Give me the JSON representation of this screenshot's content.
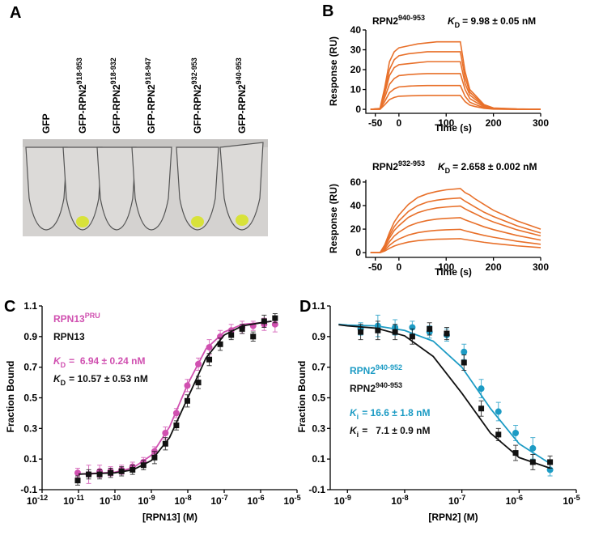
{
  "panel_labels": [
    "A",
    "B",
    "C",
    "D"
  ],
  "tube_image": {
    "labels": [
      {
        "text": "GFP"
      },
      {
        "text": "GFP-RPN2",
        "superscript": "918-953"
      },
      {
        "text": "GFP-RPN2",
        "superscript": "918-932"
      },
      {
        "text": "GFP-RPN2",
        "superscript": "918-947"
      },
      {
        "text": "GFP-RPN2",
        "superscript": "932-953"
      },
      {
        "text": "GFP-RPN2",
        "superscript": "940-953"
      }
    ]
  },
  "chart_data": [
    {
      "type": "line",
      "title": "RPN2",
      "title_superscript": "940-953",
      "annotations": [
        {
          "symbol": "K",
          "subscript": "D",
          "text": "= 9.98 ± 0.05 nM",
          "color": "#000000"
        }
      ],
      "xlabel": "Time (s)",
      "ylabel": "Response (RU)",
      "xlim": [
        -70,
        300
      ],
      "xticks": [
        -50,
        0,
        100,
        200,
        300
      ],
      "ylim": [
        -2,
        40
      ],
      "yticks": [
        0,
        10,
        20,
        30,
        40
      ],
      "x": [
        -60,
        -40,
        -30,
        -20,
        -10,
        0,
        20,
        40,
        60,
        80,
        100,
        130,
        140,
        150,
        160,
        180,
        200,
        250,
        300
      ],
      "series": [
        {
          "color": "#e8702a",
          "values": [
            0,
            0.5,
            11,
            24,
            29,
            31,
            32,
            33,
            33.5,
            34,
            34,
            34,
            19,
            10,
            7.5,
            2.4,
            0.7,
            0.2,
            0
          ]
        },
        {
          "color": "#e8702a",
          "values": [
            0,
            0.4,
            9.5,
            20,
            25,
            27,
            28,
            28.5,
            29,
            29,
            29,
            29,
            16,
            8.7,
            6.4,
            2,
            0.6,
            0.1,
            0
          ]
        },
        {
          "color": "#e8702a",
          "values": [
            0,
            0.3,
            8,
            17,
            21,
            22.5,
            23,
            23.5,
            24,
            24,
            24,
            24,
            13,
            7.2,
            5.3,
            1.7,
            0.5,
            0.1,
            0
          ]
        },
        {
          "color": "#e8702a",
          "values": [
            0,
            0.2,
            6,
            12.6,
            15.5,
            17,
            17.5,
            17.8,
            18,
            18,
            18,
            18,
            10,
            5.4,
            4,
            1.3,
            0.4,
            0,
            0
          ]
        },
        {
          "color": "#e8702a",
          "values": [
            0,
            0.1,
            4,
            8.4,
            10.3,
            11.3,
            11.7,
            11.9,
            12,
            12,
            12,
            12,
            6.6,
            3.6,
            2.6,
            0.8,
            0.2,
            0,
            0
          ]
        },
        {
          "color": "#e8702a",
          "values": [
            0,
            0,
            2.3,
            4.9,
            6,
            6.6,
            6.8,
            6.9,
            7,
            7,
            7,
            7,
            3.9,
            2.1,
            1.5,
            0.5,
            0.1,
            0,
            0
          ]
        }
      ]
    },
    {
      "type": "line",
      "title": "RPN2",
      "title_superscript": "932-953",
      "annotations": [
        {
          "symbol": "K",
          "subscript": "D",
          "text": "= 2.658 ± 0.002 nM",
          "color": "#000000"
        }
      ],
      "xlabel": "Time (s)",
      "ylabel": "Response (RU)",
      "xlim": [
        -70,
        300
      ],
      "xticks": [
        -50,
        0,
        100,
        200,
        300
      ],
      "ylim": [
        -4,
        62
      ],
      "yticks": [
        0,
        20,
        40,
        60
      ],
      "x": [
        -60,
        -40,
        -30,
        -20,
        -10,
        0,
        20,
        40,
        60,
        80,
        100,
        130,
        140,
        150,
        160,
        180,
        200,
        250,
        300
      ],
      "series": [
        {
          "color": "#e8702a",
          "values": [
            0,
            0,
            6.6,
            17,
            26,
            32,
            41,
            47,
            50,
            52,
            53.4,
            54.5,
            51,
            49,
            46,
            41,
            36,
            27,
            20
          ]
        },
        {
          "color": "#e8702a",
          "values": [
            0,
            0,
            5.6,
            14.6,
            22,
            27,
            35,
            40,
            43,
            44.6,
            45.6,
            46.5,
            43.7,
            41.4,
            39,
            34.4,
            30.7,
            22.8,
            16.7
          ]
        },
        {
          "color": "#e8702a",
          "values": [
            0,
            0,
            4.8,
            12.4,
            18.8,
            23,
            30,
            34,
            36.4,
            38,
            38.8,
            39.6,
            37.2,
            35.2,
            33.3,
            29.3,
            26.1,
            19.4,
            14.3
          ]
        },
        {
          "color": "#e8702a",
          "values": [
            0,
            0,
            3.6,
            9.3,
            14.1,
            17.4,
            22.5,
            25.5,
            27.3,
            28.5,
            29.1,
            29.7,
            27.9,
            26.4,
            25,
            22,
            19.6,
            14.6,
            10.7
          ]
        },
        {
          "color": "#e8702a",
          "values": [
            0,
            0,
            2.4,
            6.2,
            9.4,
            11.6,
            15,
            17,
            18.2,
            19,
            19.4,
            19.8,
            18.6,
            17.6,
            16.6,
            14.7,
            13.1,
            9.7,
            7.1
          ]
        },
        {
          "color": "#e8702a",
          "values": [
            0,
            0,
            1.4,
            3.7,
            5.6,
            7,
            9,
            10.2,
            10.9,
            11.4,
            11.6,
            11.9,
            11.2,
            10.6,
            10,
            8.8,
            7.8,
            5.8,
            4.3
          ]
        }
      ]
    },
    {
      "type": "scatter",
      "log_x": true,
      "xlabel": "[RPN13] (M)",
      "ylabel": "Fraction Bound",
      "xlim": [
        1e-12,
        1e-05
      ],
      "xticks": [
        {
          "value": 1e-12,
          "label": "10",
          "exponent": "-12"
        },
        {
          "value": 1e-11,
          "label": "10",
          "exponent": "-11"
        },
        {
          "value": 1e-10,
          "label": "10",
          "exponent": "-10"
        },
        {
          "value": 1e-09,
          "label": "10",
          "exponent": "-9"
        },
        {
          "value": 1e-08,
          "label": "10",
          "exponent": "-8"
        },
        {
          "value": 1e-07,
          "label": "10",
          "exponent": "-7"
        },
        {
          "value": 1e-06,
          "label": "10",
          "exponent": "-6"
        },
        {
          "value": 1e-05,
          "label": "10",
          "exponent": "-5"
        }
      ],
      "ylim": [
        -0.1,
        1.1
      ],
      "yticks": [
        -0.1,
        0.1,
        0.3,
        0.5,
        0.7,
        0.9,
        1.1
      ],
      "x": [
        9.5e-12,
        1.9e-11,
        3.8e-11,
        7.6e-11,
        1.52e-10,
        3.04e-10,
        6.08e-10,
        1.22e-09,
        2.43e-09,
        4.86e-09,
        9.73e-09,
        1.95e-08,
        3.89e-08,
        7.78e-08,
        1.56e-07,
        3.11e-07,
        6.23e-07,
        1.25e-06,
        2.49e-06
      ],
      "series": [
        {
          "name": "RPN13",
          "name_superscript": "PRU",
          "color": "#d050b0",
          "marker": "circle",
          "values": [
            0.01,
            0.0,
            0.02,
            0.02,
            0.03,
            0.05,
            0.08,
            0.15,
            0.27,
            0.4,
            0.58,
            0.72,
            0.83,
            0.9,
            0.94,
            0.96,
            0.97,
            0.98,
            0.98
          ],
          "errors": [
            0.03,
            0.06,
            0.04,
            0.03,
            0.03,
            0.03,
            0.03,
            0.03,
            0.04,
            0.03,
            0.04,
            0.04,
            0.05,
            0.04,
            0.04,
            0.04,
            0.03,
            0.04,
            0.05
          ],
          "fit": {
            "x": [
              1e-11,
              1e-10,
              3.16e-10,
              1e-09,
              3.16e-09,
              1e-08,
              3.16e-08,
              1e-07,
              3.16e-07,
              1e-06,
              2e-06
            ],
            "values": [
              0.0014,
              0.014,
              0.043,
              0.125,
              0.31,
              0.59,
              0.82,
              0.93,
              0.98,
              0.99,
              1.0
            ]
          }
        },
        {
          "name": "RPN13",
          "color": "#111111",
          "marker": "square",
          "values": [
            -0.04,
            0.0,
            0.0,
            0.01,
            0.02,
            0.03,
            0.06,
            0.11,
            0.2,
            0.32,
            0.48,
            0.6,
            0.75,
            0.85,
            0.91,
            0.95,
            0.9,
            1.0,
            1.02
          ],
          "errors": [
            0.03,
            0.03,
            0.03,
            0.03,
            0.03,
            0.03,
            0.03,
            0.04,
            0.04,
            0.03,
            0.04,
            0.04,
            0.04,
            0.04,
            0.03,
            0.03,
            0.03,
            0.04,
            0.03
          ],
          "fit": {
            "x": [
              1e-11,
              1e-10,
              3.16e-10,
              1e-09,
              3.16e-09,
              1e-08,
              3.16e-08,
              1e-07,
              3.16e-07,
              1e-06,
              2e-06
            ],
            "values": [
              0.001,
              0.01,
              0.03,
              0.09,
              0.24,
              0.5,
              0.76,
              0.91,
              0.97,
              0.99,
              1.0
            ]
          }
        }
      ],
      "annotations": [
        {
          "symbol": "K",
          "subscript": "D",
          "text": "=  6.94 ± 0.24 nM",
          "color": "#d050b0"
        },
        {
          "symbol": "K",
          "subscript": "D",
          "text": "= 10.57 ± 0.53 nM",
          "color": "#111111"
        }
      ]
    },
    {
      "type": "scatter",
      "log_x": true,
      "xlabel": "[RPN2] (M)",
      "ylabel": "Fraction Bound",
      "xlim": [
        5e-10,
        1e-05
      ],
      "xticks": [
        {
          "value": 1e-09,
          "label": "10",
          "exponent": "-9"
        },
        {
          "value": 1e-08,
          "label": "10",
          "exponent": "-8"
        },
        {
          "value": 1e-07,
          "label": "10",
          "exponent": "-7"
        },
        {
          "value": 1e-06,
          "label": "10",
          "exponent": "-6"
        },
        {
          "value": 1e-05,
          "label": "10",
          "exponent": "-5"
        }
      ],
      "ylim": [
        -0.1,
        1.1
      ],
      "yticks": [
        -0.1,
        0.1,
        0.3,
        0.5,
        0.7,
        0.9,
        1.1
      ],
      "x": [
        1.7e-09,
        3.4e-09,
        6.8e-09,
        1.36e-08,
        2.72e-08,
        5.44e-08,
        1.09e-07,
        2.18e-07,
        4.35e-07,
        8.7e-07,
        1.74e-06,
        3.48e-06
      ],
      "series": [
        {
          "name": "RPN2",
          "name_superscript": "940-952",
          "color": "#1c9bc4",
          "marker": "circle",
          "values": [
            0.95,
            0.97,
            0.96,
            0.96,
            0.93,
            0.91,
            0.8,
            0.56,
            0.41,
            0.27,
            0.17,
            0.03
          ],
          "errors": [
            0.04,
            0.07,
            0.05,
            0.04,
            0.04,
            0.04,
            0.05,
            0.06,
            0.06,
            0.05,
            0.07,
            0.04
          ],
          "fit": {
            "x": [
              7e-10,
              1e-09,
              3.16e-09,
              1e-08,
              3.16e-08,
              1e-07,
              3.16e-07,
              1e-06,
              3.5e-06
            ],
            "values": [
              0.98,
              0.975,
              0.97,
              0.94,
              0.87,
              0.7,
              0.43,
              0.2,
              0.07
            ]
          }
        },
        {
          "name": "RPN2",
          "name_superscript": "940-953",
          "color": "#111111",
          "marker": "square",
          "values": [
            0.93,
            0.94,
            0.93,
            0.9,
            0.95,
            0.92,
            0.73,
            0.43,
            0.26,
            0.14,
            0.08,
            0.08
          ],
          "errors": [
            0.05,
            0.06,
            0.05,
            0.05,
            0.04,
            0.04,
            0.05,
            0.05,
            0.04,
            0.05,
            0.05,
            0.04
          ],
          "fit": {
            "x": [
              7e-10,
              1e-09,
              3.16e-09,
              1e-08,
              3.16e-08,
              1e-07,
              3.16e-07,
              1e-06,
              3.5e-06
            ],
            "values": [
              0.977,
              0.97,
              0.955,
              0.905,
              0.77,
              0.53,
              0.27,
              0.11,
              0.04
            ]
          }
        }
      ],
      "annotations": [
        {
          "symbol": "K",
          "subscript": "i",
          "text": "= 16.6 ± 1.8 nM",
          "color": "#1c9bc4"
        },
        {
          "symbol": "K",
          "subscript": "i",
          "text": "=   7.1 ± 0.9 nM",
          "color": "#111111"
        }
      ]
    }
  ]
}
